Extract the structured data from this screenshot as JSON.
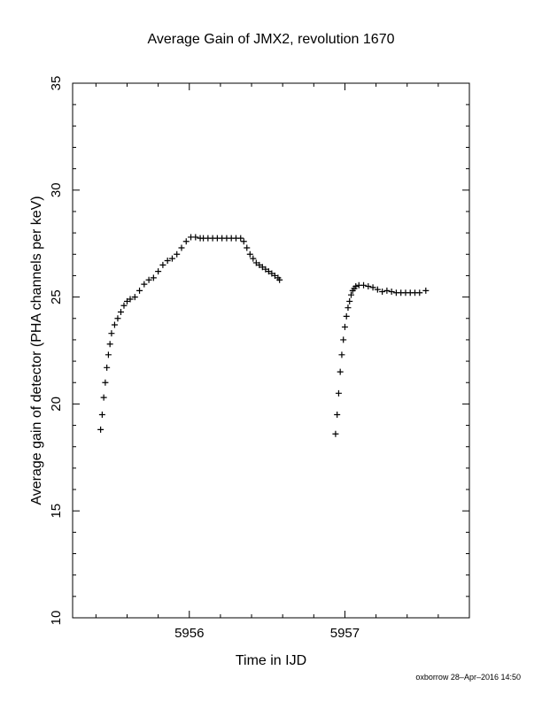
{
  "chart_data": {
    "type": "scatter",
    "title": "Average Gain of JMX2, revolution 1670",
    "xlabel": "Time in IJD",
    "ylabel": "Average gain of detector (PHA channels per keV)",
    "xlim": [
      5955.25,
      5957.8
    ],
    "ylim": [
      10,
      35
    ],
    "xticks": [
      5956,
      5957
    ],
    "yticks": [
      10,
      15,
      20,
      25,
      30,
      35
    ],
    "marker": "+",
    "color": "#000000",
    "grid": false,
    "series": [
      {
        "x": [
          5955.43,
          5955.44,
          5955.45,
          5955.46,
          5955.47,
          5955.48,
          5955.49,
          5955.5,
          5955.52,
          5955.54,
          5955.56,
          5955.58,
          5955.6,
          5955.62,
          5955.65,
          5955.68,
          5955.71,
          5955.74,
          5955.77,
          5955.8,
          5955.83,
          5955.86,
          5955.89,
          5955.92,
          5955.95,
          5955.98,
          5956.01,
          5956.04,
          5956.07,
          5956.09,
          5956.12,
          5956.15,
          5956.18,
          5956.21,
          5956.24,
          5956.27,
          5956.3,
          5956.33,
          5956.35,
          5956.37,
          5956.39,
          5956.41,
          5956.43,
          5956.45,
          5956.47,
          5956.49,
          5956.51,
          5956.53,
          5956.55,
          5956.57,
          5956.58
        ],
        "y": [
          18.8,
          19.5,
          20.3,
          21.0,
          21.7,
          22.3,
          22.8,
          23.3,
          23.7,
          24.0,
          24.3,
          24.6,
          24.8,
          24.9,
          25.0,
          25.3,
          25.6,
          25.8,
          25.9,
          26.2,
          26.5,
          26.7,
          26.8,
          27.0,
          27.3,
          27.6,
          27.8,
          27.8,
          27.75,
          27.75,
          27.75,
          27.75,
          27.75,
          27.75,
          27.75,
          27.75,
          27.75,
          27.75,
          27.6,
          27.3,
          27.0,
          26.8,
          26.6,
          26.5,
          26.4,
          26.3,
          26.2,
          26.1,
          26.0,
          25.9,
          25.8
        ]
      },
      {
        "x": [
          5956.94,
          5956.95,
          5956.96,
          5956.97,
          5956.98,
          5956.99,
          5957.0,
          5957.01,
          5957.02,
          5957.03,
          5957.04,
          5957.05,
          5957.06,
          5957.07,
          5957.09,
          5957.12,
          5957.15,
          5957.18,
          5957.21,
          5957.24,
          5957.27,
          5957.3,
          5957.33,
          5957.36,
          5957.39,
          5957.42,
          5957.45,
          5957.48,
          5957.52
        ],
        "y": [
          18.6,
          19.5,
          20.5,
          21.5,
          22.3,
          23.0,
          23.6,
          24.1,
          24.5,
          24.8,
          25.1,
          25.3,
          25.4,
          25.5,
          25.55,
          25.55,
          25.5,
          25.45,
          25.35,
          25.25,
          25.3,
          25.25,
          25.2,
          25.2,
          25.2,
          25.2,
          25.2,
          25.2,
          25.3
        ]
      }
    ]
  },
  "footer": "oxborrow 28–Apr–2016 14:50"
}
